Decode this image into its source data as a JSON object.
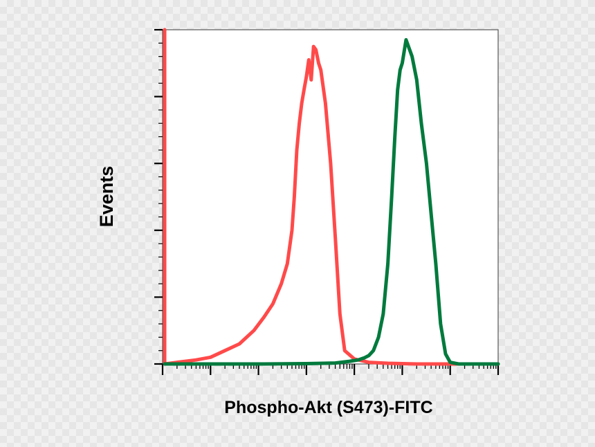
{
  "chart_data": {
    "type": "line",
    "title": "",
    "xlabel": "Phospho-Akt (S473)-FITC",
    "ylabel": "Events",
    "x_scale": "log",
    "xlim": [
      0.1,
      1000000
    ],
    "ylim": [
      0,
      100
    ],
    "grid": false,
    "legend": "none",
    "series": [
      {
        "color": "#ff4a4a",
        "x": [
          0.1,
          0.1,
          0.11,
          0.2,
          0.5,
          1,
          2,
          4,
          8,
          13,
          20,
          30,
          40,
          50,
          56,
          63,
          71,
          80,
          89,
          100,
          112,
          126,
          141,
          158,
          180,
          200,
          250,
          320,
          400,
          500,
          630,
          1000,
          2000,
          5000,
          20000,
          100000,
          1000000
        ],
        "y": [
          0,
          100,
          0,
          0.5,
          1.2,
          2,
          4,
          6,
          10,
          14,
          18,
          24,
          30,
          40,
          50,
          64,
          72,
          78,
          82,
          86,
          91,
          85,
          95,
          94,
          90,
          88,
          78,
          60,
          38,
          15,
          4,
          1.5,
          0.5,
          0.2,
          0,
          0,
          0
        ]
      },
      {
        "color": "#007a3d",
        "x": [
          0.1,
          10,
          100,
          400,
          800,
          1200,
          1600,
          2000,
          2500,
          3200,
          4000,
          5000,
          6000,
          7000,
          8000,
          9000,
          10000,
          12000,
          16000,
          20000,
          25000,
          32000,
          40000,
          50000,
          63000,
          80000,
          100000,
          150000,
          300000,
          1000000
        ],
        "y": [
          0,
          0,
          0.1,
          0.3,
          0.8,
          1.2,
          1.8,
          2.5,
          4,
          8,
          15,
          30,
          50,
          68,
          82,
          88,
          90,
          97,
          92,
          85,
          72,
          60,
          45,
          30,
          12,
          3,
          0.5,
          0,
          0,
          0
        ]
      }
    ]
  }
}
